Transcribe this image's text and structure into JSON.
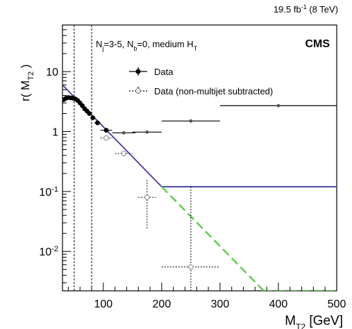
{
  "header": {
    "lumi": "19.5 fb",
    "lumi_exp": "-1",
    "energy": " (8 TeV)"
  },
  "experiment": "CMS",
  "selection": {
    "p1": "N",
    "s1": "j",
    "p2": "=3-5, N",
    "s2": "b",
    "p3": "=0, medium H",
    "s3": "T"
  },
  "axes": {
    "ylabel_prefix": "r( M",
    "ylabel_sub": "T2",
    "ylabel_suffix": " )",
    "xlabel_prefix": "M",
    "xlabel_sub": "T2",
    "xlabel_suffix": " [GeV]",
    "xticks": [
      "100",
      "200",
      "300",
      "400",
      "500"
    ],
    "yticks": [
      {
        "base": "10",
        "exp": "-2",
        "value": 0.01
      },
      {
        "base": "10",
        "exp": "-1",
        "value": 0.1
      },
      {
        "base": "1",
        "exp": "",
        "value": 1
      },
      {
        "base": "10",
        "exp": "",
        "value": 10
      }
    ]
  },
  "legend": {
    "data": "Data",
    "data_sub": "Data (non-multijet subtracted)"
  },
  "colors": {
    "fit": "#3f3fa0",
    "extrapolation": "#66cc55",
    "data": "#000000",
    "data_sub": "#888888"
  },
  "chart_data": {
    "type": "scatter",
    "xlim": [
      30,
      500
    ],
    "ylim": [
      0.0022,
      60
    ],
    "yscale": "log",
    "grid": false,
    "legend_position": "top-left",
    "vertical_lines": [
      50,
      80
    ],
    "series": [
      {
        "name": "Data",
        "marker": "filled-circle",
        "points": [
          {
            "x": 32,
            "y": 3.4,
            "xerr": 2
          },
          {
            "x": 36,
            "y": 3.6,
            "xerr": 2
          },
          {
            "x": 40,
            "y": 3.7,
            "xerr": 2
          },
          {
            "x": 44,
            "y": 3.65,
            "xerr": 2
          },
          {
            "x": 48,
            "y": 3.6,
            "xerr": 2
          },
          {
            "x": 52,
            "y": 3.5,
            "xerr": 2
          },
          {
            "x": 56,
            "y": 3.3,
            "xerr": 2
          },
          {
            "x": 60,
            "y": 3.0,
            "xerr": 2
          },
          {
            "x": 64,
            "y": 2.7,
            "xerr": 2
          },
          {
            "x": 68,
            "y": 2.4,
            "xerr": 2
          },
          {
            "x": 72,
            "y": 2.2,
            "xerr": 2
          },
          {
            "x": 76,
            "y": 2.0,
            "xerr": 2
          },
          {
            "x": 82,
            "y": 1.7,
            "xerr": 3
          },
          {
            "x": 90,
            "y": 1.4,
            "xerr": 5
          },
          {
            "x": 105,
            "y": 1.05,
            "xerr": 10
          },
          {
            "x": 135,
            "y": 0.95,
            "xerr": 20
          },
          {
            "x": 175,
            "y": 0.98,
            "xerr": 25
          },
          {
            "x": 250,
            "y": 1.5,
            "xerr": 50
          },
          {
            "x": 400,
            "y": 2.7,
            "xerr": 100
          }
        ]
      },
      {
        "name": "Data (non-multijet subtracted)",
        "marker": "open-circle",
        "points": [
          {
            "x": 105,
            "y": 0.78,
            "xerr": 10,
            "ylo": 0.72,
            "yhi": 0.84
          },
          {
            "x": 135,
            "y": 0.43,
            "xerr": 15,
            "ylo": 0.4,
            "yhi": 0.46
          },
          {
            "x": 175,
            "y": 0.08,
            "xerr": 15,
            "ylo": 0.024,
            "yhi": 0.16
          },
          {
            "x": 250,
            "y": 0.0055,
            "xerr": 50,
            "ylo": 0.0022,
            "yhi": 0.12
          }
        ]
      },
      {
        "name": "fit",
        "type": "line",
        "x": [
          30,
          200
        ],
        "y": [
          6.0,
          0.12
        ]
      },
      {
        "name": "fit-flat",
        "type": "line",
        "x": [
          200,
          500
        ],
        "y": [
          0.12,
          0.12
        ]
      },
      {
        "name": "extrapolation",
        "type": "dashed-line",
        "x": [
          200,
          375
        ],
        "y": [
          0.12,
          0.0022
        ]
      },
      {
        "name": "extrapolation-flat",
        "type": "dashed-line",
        "x": [
          375,
          500
        ],
        "y": [
          0.0022,
          0.0022
        ]
      }
    ]
  }
}
